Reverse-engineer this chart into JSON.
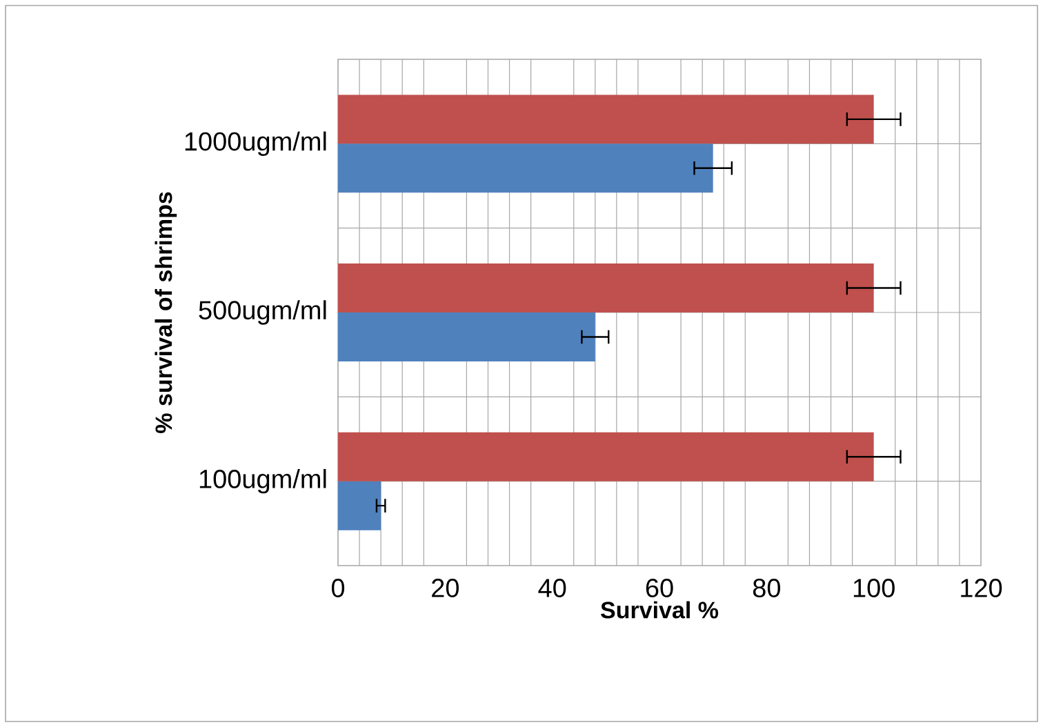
{
  "chart_data": {
    "type": "bar",
    "orientation": "horizontal",
    "xlabel": "Survival %",
    "ylabel": "% survival of shrimps",
    "categories": [
      "1000ugm/ml",
      "500ugm/ml",
      "100ugm/ml"
    ],
    "series": [
      {
        "color": "#4f81bd",
        "values": [
          70,
          48,
          8
        ],
        "errors": [
          3.5,
          2.5,
          0.8
        ]
      },
      {
        "color": "#c0504d",
        "values": [
          100,
          100,
          100
        ],
        "errors": [
          5,
          5,
          5
        ]
      }
    ],
    "xlim": [
      0,
      120
    ],
    "xticks": [
      0,
      20,
      40,
      60,
      80,
      100,
      120
    ],
    "grid": true
  }
}
